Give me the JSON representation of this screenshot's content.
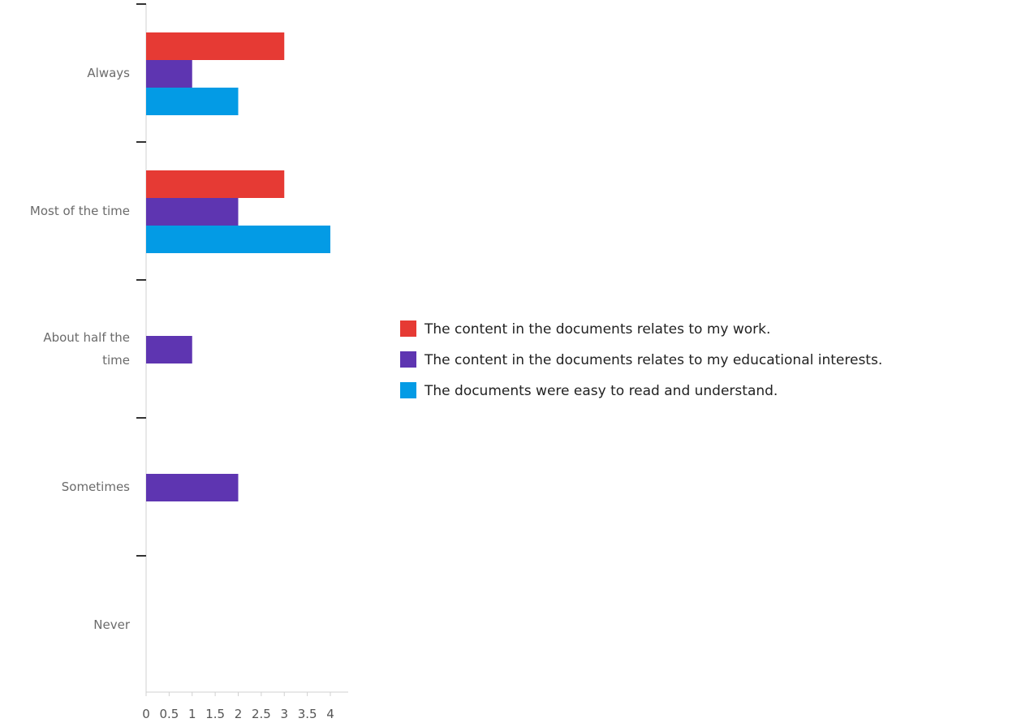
{
  "chart_data": {
    "type": "bar",
    "orientation": "horizontal",
    "categories": [
      [
        "Always"
      ],
      [
        "Most of the time"
      ],
      [
        "About half the",
        "time"
      ],
      [
        "Sometimes"
      ],
      [
        "Never"
      ]
    ],
    "series": [
      {
        "name": "The content in the documents relates to my work.",
        "color": "#e63a34",
        "values": [
          3,
          3,
          0,
          0,
          0
        ]
      },
      {
        "name": "The content in the documents relates to my educational interests.",
        "color": "#5e35b1",
        "values": [
          1,
          2,
          1,
          2,
          0
        ]
      },
      {
        "name": "The documents were easy to read and understand.",
        "color": "#039be5",
        "values": [
          2,
          4,
          0,
          0,
          0
        ]
      }
    ],
    "x_ticks": [
      "0",
      "0.5",
      "1",
      "1.5",
      "2",
      "2.5",
      "3",
      "3.5",
      "4"
    ],
    "xlim": [
      0,
      4
    ],
    "title": "",
    "xlabel": "",
    "ylabel": "",
    "legend_position": "right",
    "grid": false
  }
}
